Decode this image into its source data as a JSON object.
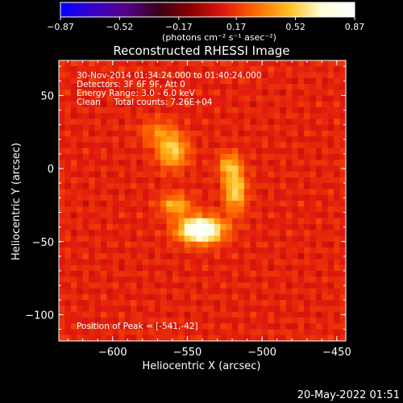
{
  "chart_data": {
    "type": "heatmap",
    "title": "Reconstructed RHESSI Image",
    "xlabel": "Heliocentric X (arcsec)",
    "ylabel": "Heliocentric Y (arcsec)",
    "xlim": [
      -636,
      -444
    ],
    "ylim": [
      -118,
      74
    ],
    "x_ticks": [
      -600,
      -550,
      -500,
      -450
    ],
    "y_ticks": [
      50,
      0,
      -50,
      -100
    ],
    "colorbar": {
      "ticks": [
        "-0.87",
        "-0.52",
        "-0.17",
        "0.17",
        "0.52",
        "0.87"
      ],
      "range": [
        -0.87,
        0.87
      ],
      "units_label": "(photons cm⁻² s⁻¹ asec⁻²)",
      "colormap": [
        "#0000ff",
        "#3a00c8",
        "#55008a",
        "#3a0018",
        "#8a0000",
        "#e0180e",
        "#ff6a00",
        "#ffc020",
        "#ffffd8",
        "#ffffff"
      ]
    },
    "annotations": [
      "30-Nov-2014 01:34:24.000 to 01:40:24.000",
      "Detectors: 3F 6F 9F, Att 0",
      "Energy Range: 3.0 - 6.0 keV",
      "Clean     Total counts: 7.26E+04"
    ],
    "peak_label": "Position of Peak = [-541,-42]",
    "peak": {
      "x": -541,
      "y": -42,
      "value": 0.87
    },
    "sources": [
      {
        "x": -541,
        "y": -42,
        "sigma_x": 10,
        "sigma_y": 6,
        "peak": 0.87
      },
      {
        "x": -558,
        "y": -25,
        "sigma_x": 7,
        "sigma_y": 5,
        "peak": 0.35
      },
      {
        "x": -518,
        "y": -15,
        "sigma_x": 5,
        "sigma_y": 10,
        "peak": 0.45
      },
      {
        "x": -522,
        "y": 2,
        "sigma_x": 5,
        "sigma_y": 6,
        "peak": 0.32
      },
      {
        "x": -560,
        "y": 12,
        "sigma_x": 7,
        "sigma_y": 8,
        "peak": 0.42
      },
      {
        "x": -570,
        "y": 25,
        "sigma_x": 8,
        "sigma_y": 6,
        "peak": 0.2
      }
    ],
    "background_level": 0.12
  },
  "footer": {
    "date": "20-May-2022 01:51"
  }
}
